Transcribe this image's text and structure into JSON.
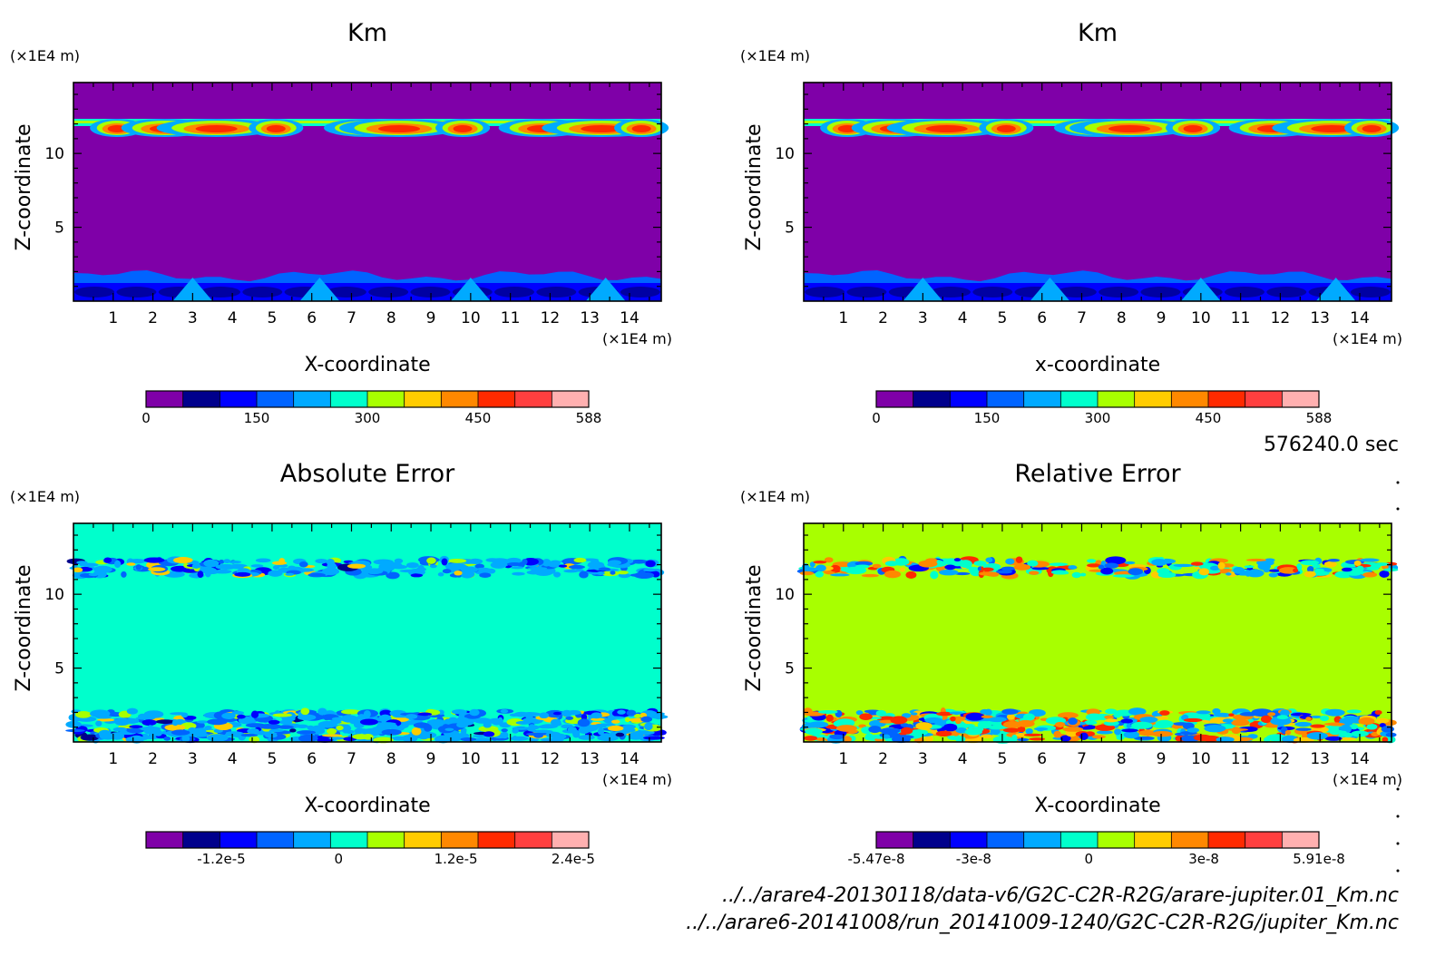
{
  "chart_data": [
    {
      "type": "heatmap",
      "title": "Km",
      "ylabel": "Z-coordinate",
      "xlabel": "X-coordinate",
      "y_unit": "(×1E4 m)",
      "x_unit": "(×1E4 m)",
      "xlim": [
        0,
        14.8
      ],
      "ylim": [
        0,
        14.8
      ],
      "xticks": [
        "1",
        "2",
        "3",
        "4",
        "5",
        "6",
        "7",
        "8",
        "9",
        "10",
        "11",
        "12",
        "13",
        "14"
      ],
      "yticks": [
        "5",
        "10"
      ],
      "colorbar": {
        "ticks": [
          "0",
          "150",
          "300",
          "450",
          "588"
        ],
        "range": [
          0,
          588
        ],
        "colors": [
          "#7f00a8",
          "#00008c",
          "#0000ff",
          "#0064ff",
          "#00aaff",
          "#00ffcc",
          "#a8ff00",
          "#ffcc00",
          "#ff8800",
          "#ff2a00",
          "#ff3f3f",
          "#ffb0b0"
        ]
      }
    },
    {
      "type": "heatmap",
      "title": "Km",
      "ylabel": "Z-coordinate",
      "xlabel": "x-coordinate",
      "y_unit": "(×1E4 m)",
      "x_unit": "(×1E4 m)",
      "xlim": [
        0,
        14.8
      ],
      "ylim": [
        0,
        14.8
      ],
      "xticks": [
        "1",
        "2",
        "3",
        "4",
        "5",
        "6",
        "7",
        "8",
        "9",
        "10",
        "11",
        "12",
        "13",
        "14"
      ],
      "yticks": [
        "5",
        "10"
      ],
      "colorbar": {
        "ticks": [
          "0",
          "150",
          "300",
          "450",
          "588"
        ],
        "range": [
          0,
          588
        ],
        "colors": [
          "#7f00a8",
          "#00008c",
          "#0000ff",
          "#0064ff",
          "#00aaff",
          "#00ffcc",
          "#a8ff00",
          "#ffcc00",
          "#ff8800",
          "#ff2a00",
          "#ff3f3f",
          "#ffb0b0"
        ]
      }
    },
    {
      "type": "heatmap",
      "title": "Absolute Error",
      "ylabel": "Z-coordinate",
      "xlabel": "X-coordinate",
      "y_unit": "(×1E4 m)",
      "x_unit": "(×1E4 m)",
      "xlim": [
        0,
        14.8
      ],
      "ylim": [
        0,
        14.8
      ],
      "xticks": [
        "1",
        "2",
        "3",
        "4",
        "5",
        "6",
        "7",
        "8",
        "9",
        "10",
        "11",
        "12",
        "13",
        "14"
      ],
      "yticks": [
        "5",
        "10"
      ],
      "colorbar": {
        "ticks": [
          "-1.2e-5",
          "0",
          "1.2e-5",
          "2.4e-5"
        ],
        "colors": [
          "#7f00a8",
          "#00008c",
          "#0000ff",
          "#0064ff",
          "#00aaff",
          "#00ffcc",
          "#a8ff00",
          "#ffcc00",
          "#ff8800",
          "#ff2a00",
          "#ff3f3f",
          "#ffb0b0"
        ]
      }
    },
    {
      "type": "heatmap",
      "title": "Relative Error",
      "ylabel": "Z-coordinate",
      "xlabel": "X-coordinate",
      "y_unit": "(×1E4 m)",
      "x_unit": "(×1E4 m)",
      "xlim": [
        0,
        14.8
      ],
      "ylim": [
        0,
        14.8
      ],
      "xticks": [
        "1",
        "2",
        "3",
        "4",
        "5",
        "6",
        "7",
        "8",
        "9",
        "10",
        "11",
        "12",
        "13",
        "14"
      ],
      "yticks": [
        "5",
        "10"
      ],
      "colorbar": {
        "ticks": [
          "-5.47e-8",
          "-3e-8",
          "0",
          "3e-8",
          "5.91e-8"
        ],
        "range": [
          -5.47e-08,
          5.91e-08
        ],
        "colors": [
          "#7f00a8",
          "#00008c",
          "#0000ff",
          "#0064ff",
          "#00aaff",
          "#00ffcc",
          "#a8ff00",
          "#ffcc00",
          "#ff8800",
          "#ff2a00",
          "#ff3f3f",
          "#ffb0b0"
        ]
      }
    }
  ],
  "time_label": "576240.0 sec",
  "file_paths": [
    "../../arare4-20130118/data-v6/G2C-C2R-R2G/arare-jupiter.01_Km.nc",
    "../../arare6-20141008/run_20141009-1240/G2C-C2R-R2G/jupiter_Km.nc"
  ]
}
